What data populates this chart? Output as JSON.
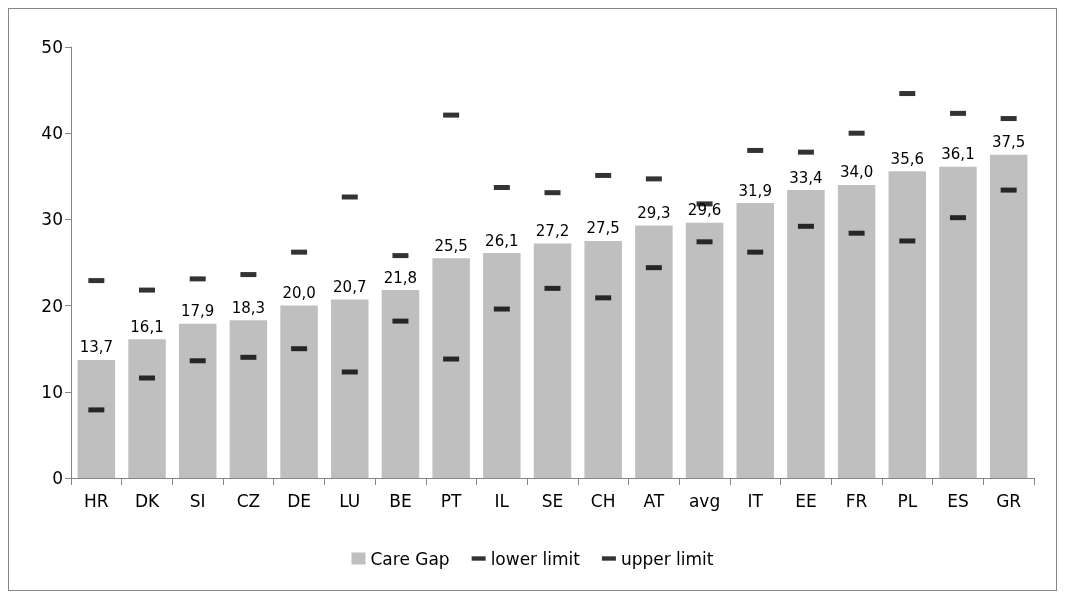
{
  "chart_data": {
    "type": "bar",
    "categories": [
      "HR",
      "DK",
      "SI",
      "CZ",
      "DE",
      "LU",
      "BE",
      "PT",
      "IL",
      "SE",
      "CH",
      "AT",
      "avg",
      "IT",
      "EE",
      "FR",
      "PL",
      "ES",
      "GR"
    ],
    "series": [
      {
        "name": "Care Gap",
        "color": "#bfbfbf",
        "values": [
          13.7,
          16.1,
          17.9,
          18.3,
          20.0,
          20.7,
          21.8,
          25.5,
          26.1,
          27.2,
          27.5,
          29.3,
          29.6,
          31.9,
          33.4,
          34.0,
          35.6,
          36.1,
          37.5
        ],
        "value_labels": [
          "13,7",
          "16,1",
          "17,9",
          "18,3",
          "20,0",
          "20,7",
          "21,8",
          "25,5",
          "26,1",
          "27,2",
          "27,5",
          "29,3",
          "29,6",
          "31,9",
          "33,4",
          "34,0",
          "35,6",
          "36,1",
          "37,5"
        ]
      },
      {
        "name": "lower limit",
        "type": "scatter",
        "color": "#000000",
        "values": [
          7.9,
          11.6,
          13.6,
          14.0,
          15.0,
          12.3,
          18.2,
          13.8,
          19.6,
          22.0,
          20.9,
          24.4,
          27.4,
          26.2,
          29.2,
          28.4,
          27.5,
          30.2,
          33.4
        ]
      },
      {
        "name": "upper limit",
        "type": "scatter",
        "color": "#000000",
        "values": [
          22.9,
          21.8,
          23.1,
          23.6,
          26.2,
          32.6,
          25.8,
          42.1,
          33.7,
          33.1,
          35.1,
          34.7,
          31.8,
          38.0,
          37.8,
          40.0,
          44.6,
          42.3,
          41.7
        ]
      }
    ],
    "ylim": [
      0,
      50
    ],
    "yticks": [
      0,
      10,
      20,
      30,
      40,
      50
    ],
    "grid": false,
    "legend": "bottom"
  }
}
